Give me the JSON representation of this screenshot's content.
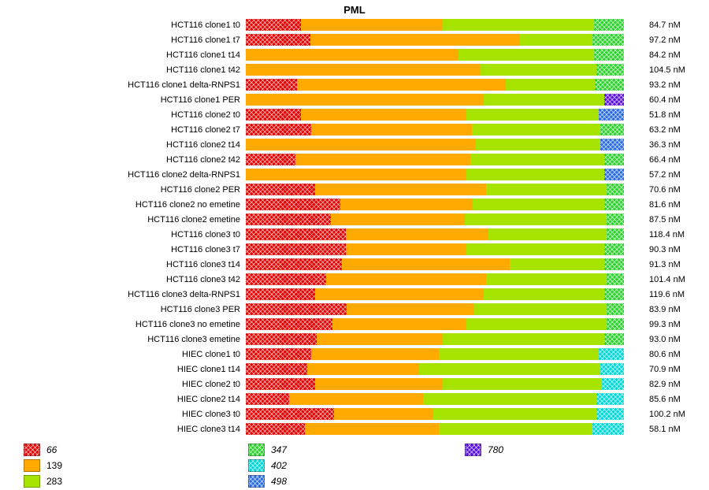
{
  "chart_data": {
    "type": "bar",
    "variant": "horizontal-100pct-stacked",
    "title": "PML",
    "legend_position": "bottom",
    "axis_range": [
      0,
      100
    ],
    "grid": false,
    "legend": [
      {
        "label": "66",
        "color": "#e60000",
        "patterned": true
      },
      {
        "label": "139",
        "color": "#ffaa00",
        "patterned": false
      },
      {
        "label": "283",
        "color": "#a6e400",
        "patterned": false
      },
      {
        "label": "347",
        "color": "#2ed22e",
        "patterned": true
      },
      {
        "label": "402",
        "color": "#00d8d8",
        "patterned": true
      },
      {
        "label": "498",
        "color": "#2a6de0",
        "patterned": true
      },
      {
        "label": "780",
        "color": "#5a0fe0",
        "patterned": true
      }
    ],
    "legend_columns": [
      [
        "66",
        "139",
        "283"
      ],
      [
        "347",
        "402",
        "498"
      ],
      [
        "780"
      ]
    ],
    "rows": [
      {
        "label": "HCT116 clone1 t0",
        "value": "84.7 nM",
        "segments": [
          [
            "66",
            14.6
          ],
          [
            "139",
            37.5
          ],
          [
            "283",
            40.0
          ],
          [
            "347",
            7.9
          ]
        ]
      },
      {
        "label": "HCT116 clone1 t7",
        "value": "97.2 nM",
        "segments": [
          [
            "66",
            17.1
          ],
          [
            "139",
            55.4
          ],
          [
            "283",
            19.2
          ],
          [
            "347",
            8.3
          ]
        ]
      },
      {
        "label": "HCT116 clone1 t14",
        "value": "84.2 nM",
        "segments": [
          [
            "139",
            56.3
          ],
          [
            "283",
            35.8
          ],
          [
            "347",
            7.9
          ]
        ]
      },
      {
        "label": "HCT116 clone1 t42",
        "value": "104.5 nM",
        "segments": [
          [
            "139",
            62.1
          ],
          [
            "283",
            30.6
          ],
          [
            "347",
            7.3
          ]
        ]
      },
      {
        "label": "HCT116 clone1 delta-RNPS1",
        "value": "93.2 nM",
        "segments": [
          [
            "66",
            13.5
          ],
          [
            "139",
            55.2
          ],
          [
            "283",
            23.6
          ],
          [
            "347",
            7.7
          ]
        ]
      },
      {
        "label": "HCT116 clone1 PER",
        "value": "60.4 nM",
        "segments": [
          [
            "139",
            62.9
          ],
          [
            "283",
            31.9
          ],
          [
            "780",
            5.2
          ]
        ]
      },
      {
        "label": "HCT116 clone2 t0",
        "value": "51.8 nM",
        "segments": [
          [
            "66",
            14.6
          ],
          [
            "139",
            43.8
          ],
          [
            "283",
            35.0
          ],
          [
            "498",
            6.6
          ]
        ]
      },
      {
        "label": "HCT116 clone2 t7",
        "value": "63.2 nM",
        "segments": [
          [
            "66",
            17.3
          ],
          [
            "139",
            42.5
          ],
          [
            "283",
            34.0
          ],
          [
            "347",
            6.2
          ]
        ]
      },
      {
        "label": "HCT116 clone2 t14",
        "value": "36.3 nM",
        "segments": [
          [
            "139",
            60.8
          ],
          [
            "283",
            32.9
          ],
          [
            "498",
            6.3
          ]
        ]
      },
      {
        "label": "HCT116 clone2 t42",
        "value": "66.4 nM",
        "segments": [
          [
            "66",
            13.1
          ],
          [
            "139",
            46.3
          ],
          [
            "283",
            35.4
          ],
          [
            "347",
            5.2
          ]
        ]
      },
      {
        "label": "HCT116 clone2 delta-RNPS1",
        "value": "57.2 nM",
        "segments": [
          [
            "139",
            58.3
          ],
          [
            "283",
            36.5
          ],
          [
            "498",
            5.2
          ]
        ]
      },
      {
        "label": "HCT116 clone2 PER",
        "value": "70.6 nM",
        "segments": [
          [
            "66",
            18.3
          ],
          [
            "139",
            45.2
          ],
          [
            "283",
            31.9
          ],
          [
            "347",
            4.6
          ]
        ]
      },
      {
        "label": "HCT116 clone2 no emetine",
        "value": "81.6 nM",
        "segments": [
          [
            "66",
            25.0
          ],
          [
            "139",
            35.0
          ],
          [
            "283",
            34.8
          ],
          [
            "347",
            5.2
          ]
        ]
      },
      {
        "label": "HCT116 clone2 emetine",
        "value": "87.5 nM",
        "segments": [
          [
            "66",
            22.5
          ],
          [
            "139",
            35.4
          ],
          [
            "283",
            37.5
          ],
          [
            "347",
            4.6
          ]
        ]
      },
      {
        "label": "HCT116 clone3 t0",
        "value": "118.4 nM",
        "segments": [
          [
            "66",
            26.5
          ],
          [
            "139",
            37.7
          ],
          [
            "283",
            31.2
          ],
          [
            "347",
            4.6
          ]
        ]
      },
      {
        "label": "HCT116 clone3 t7",
        "value": "90.3 nM",
        "segments": [
          [
            "66",
            26.5
          ],
          [
            "139",
            31.9
          ],
          [
            "283",
            36.4
          ],
          [
            "347",
            5.2
          ]
        ]
      },
      {
        "label": "HCT116 clone3 t14",
        "value": "91.3 nM",
        "segments": [
          [
            "66",
            25.4
          ],
          [
            "139",
            44.4
          ],
          [
            "283",
            25.0
          ],
          [
            "347",
            5.2
          ]
        ]
      },
      {
        "label": "HCT116 clone3 t42",
        "value": "101.4 nM",
        "segments": [
          [
            "66",
            21.3
          ],
          [
            "139",
            42.3
          ],
          [
            "283",
            31.8
          ],
          [
            "347",
            4.6
          ]
        ]
      },
      {
        "label": "HCT116 clone3 delta-RNPS1",
        "value": "119.6 nM",
        "segments": [
          [
            "66",
            18.3
          ],
          [
            "139",
            44.6
          ],
          [
            "283",
            31.9
          ],
          [
            "347",
            5.2
          ]
        ]
      },
      {
        "label": "HCT116 clone3 PER",
        "value": "83.9 nM",
        "segments": [
          [
            "66",
            26.7
          ],
          [
            "139",
            33.7
          ],
          [
            "283",
            35.0
          ],
          [
            "347",
            4.6
          ]
        ]
      },
      {
        "label": "HCT116 clone3 no emetine",
        "value": "99.3 nM",
        "segments": [
          [
            "66",
            22.9
          ],
          [
            "139",
            35.4
          ],
          [
            "283",
            37.1
          ],
          [
            "347",
            4.6
          ]
        ]
      },
      {
        "label": "HCT116 clone3 emetine",
        "value": "93.0 nM",
        "segments": [
          [
            "66",
            18.8
          ],
          [
            "139",
            33.3
          ],
          [
            "283",
            42.7
          ],
          [
            "347",
            5.2
          ]
        ]
      },
      {
        "label": "HIEC clone1 t0",
        "value": "80.6 nM",
        "segments": [
          [
            "66",
            17.3
          ],
          [
            "139",
            33.8
          ],
          [
            "283",
            42.2
          ],
          [
            "402",
            6.7
          ]
        ]
      },
      {
        "label": "HIEC clone1 t14",
        "value": "70.9 nM",
        "segments": [
          [
            "66",
            16.3
          ],
          [
            "139",
            29.6
          ],
          [
            "283",
            47.9
          ],
          [
            "402",
            6.2
          ]
        ]
      },
      {
        "label": "HIEC clone2 t0",
        "value": "82.9 nM",
        "segments": [
          [
            "66",
            18.3
          ],
          [
            "139",
            33.8
          ],
          [
            "283",
            42.1
          ],
          [
            "402",
            5.8
          ]
        ]
      },
      {
        "label": "HIEC clone2 t14",
        "value": "85.6 nM",
        "segments": [
          [
            "66",
            11.5
          ],
          [
            "139",
            35.4
          ],
          [
            "283",
            45.8
          ],
          [
            "402",
            7.3
          ]
        ]
      },
      {
        "label": "HIEC clone3 t0",
        "value": "100.2 nM",
        "segments": [
          [
            "66",
            23.3
          ],
          [
            "139",
            26.3
          ],
          [
            "283",
            43.1
          ],
          [
            "402",
            7.3
          ]
        ]
      },
      {
        "label": "HIEC clone3 t14",
        "value": "58.1 nM",
        "segments": [
          [
            "66",
            15.6
          ],
          [
            "139",
            35.4
          ],
          [
            "283",
            40.6
          ],
          [
            "402",
            8.4
          ]
        ]
      }
    ]
  }
}
